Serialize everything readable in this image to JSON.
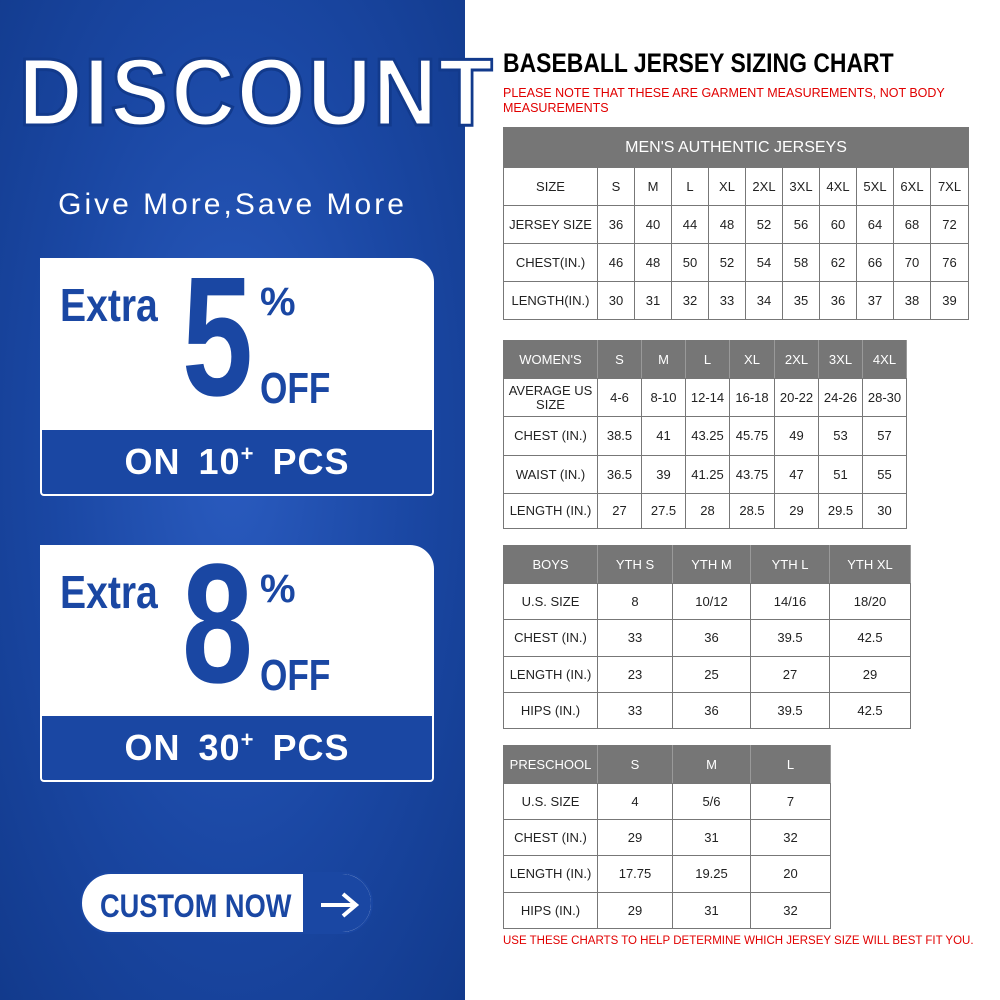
{
  "promo": {
    "title": "DISCOUNT",
    "tagline": "Give More,Save More",
    "offers": [
      {
        "extra": "Extra",
        "amount": "5",
        "percent": "%",
        "off": "OFF",
        "on": "ON",
        "qty": "10",
        "plus": "+",
        "pcs": "PCS"
      },
      {
        "extra": "Extra",
        "amount": "8",
        "percent": "%",
        "off": "OFF",
        "on": "ON",
        "qty": "30",
        "plus": "+",
        "pcs": "PCS"
      }
    ],
    "button": "CUSTOM NOW"
  },
  "chart": {
    "title": "BASEBALL JERSEY SIZING CHART",
    "note": "PLEASE NOTE THAT THESE ARE GARMENT MEASUREMENTS, NOT BODY MEASUREMENTS",
    "tables": [
      {
        "caption": "MEN'S AUTHENTIC JERSEYS",
        "header": [
          "SIZE",
          "S",
          "M",
          "L",
          "XL",
          "2XL",
          "3XL",
          "4XL",
          "5XL",
          "6XL",
          "7XL"
        ],
        "rows": [
          [
            "JERSEY SIZE",
            "36",
            "40",
            "44",
            "48",
            "52",
            "56",
            "60",
            "64",
            "68",
            "72"
          ],
          [
            "CHEST(IN.)",
            "46",
            "48",
            "50",
            "52",
            "54",
            "58",
            "62",
            "66",
            "70",
            "76"
          ],
          [
            "LENGTH(IN.)",
            "30",
            "31",
            "32",
            "33",
            "34",
            "35",
            "36",
            "37",
            "38",
            "39"
          ]
        ]
      },
      {
        "header": [
          "WOMEN'S",
          "S",
          "M",
          "L",
          "XL",
          "2XL",
          "3XL",
          "4XL"
        ],
        "rows": [
          [
            "AVERAGE US SIZE",
            "4-6",
            "8-10",
            "12-14",
            "16-18",
            "20-22",
            "24-26",
            "28-30"
          ],
          [
            "CHEST (IN.)",
            "38.5",
            "41",
            "43.25",
            "45.75",
            "49",
            "53",
            "57"
          ],
          [
            "WAIST (IN.)",
            "36.5",
            "39",
            "41.25",
            "43.75",
            "47",
            "51",
            "55"
          ],
          [
            "LENGTH (IN.)",
            "27",
            "27.5",
            "28",
            "28.5",
            "29",
            "29.5",
            "30"
          ]
        ]
      },
      {
        "header": [
          "BOYS",
          "YTH S",
          "YTH M",
          "YTH L",
          "YTH XL"
        ],
        "rows": [
          [
            "U.S. SIZE",
            "8",
            "10/12",
            "14/16",
            "18/20"
          ],
          [
            "CHEST (IN.)",
            "33",
            "36",
            "39.5",
            "42.5"
          ],
          [
            "LENGTH (IN.)",
            "23",
            "25",
            "27",
            "29"
          ],
          [
            "HIPS (IN.)",
            "33",
            "36",
            "39.5",
            "42.5"
          ]
        ]
      },
      {
        "header": [
          "PRESCHOOL",
          "S",
          "M",
          "L"
        ],
        "rows": [
          [
            "U.S. SIZE",
            "4",
            "5/6",
            "7"
          ],
          [
            "CHEST (IN.)",
            "29",
            "31",
            "32"
          ],
          [
            "LENGTH (IN.)",
            "17.75",
            "19.25",
            "20"
          ],
          [
            "HIPS (IN.)",
            "29",
            "31",
            "32"
          ]
        ]
      }
    ],
    "footer": "USE THESE CHARTS TO HELP DETERMINE WHICH JERSEY SIZE WILL BEST FIT YOU."
  }
}
